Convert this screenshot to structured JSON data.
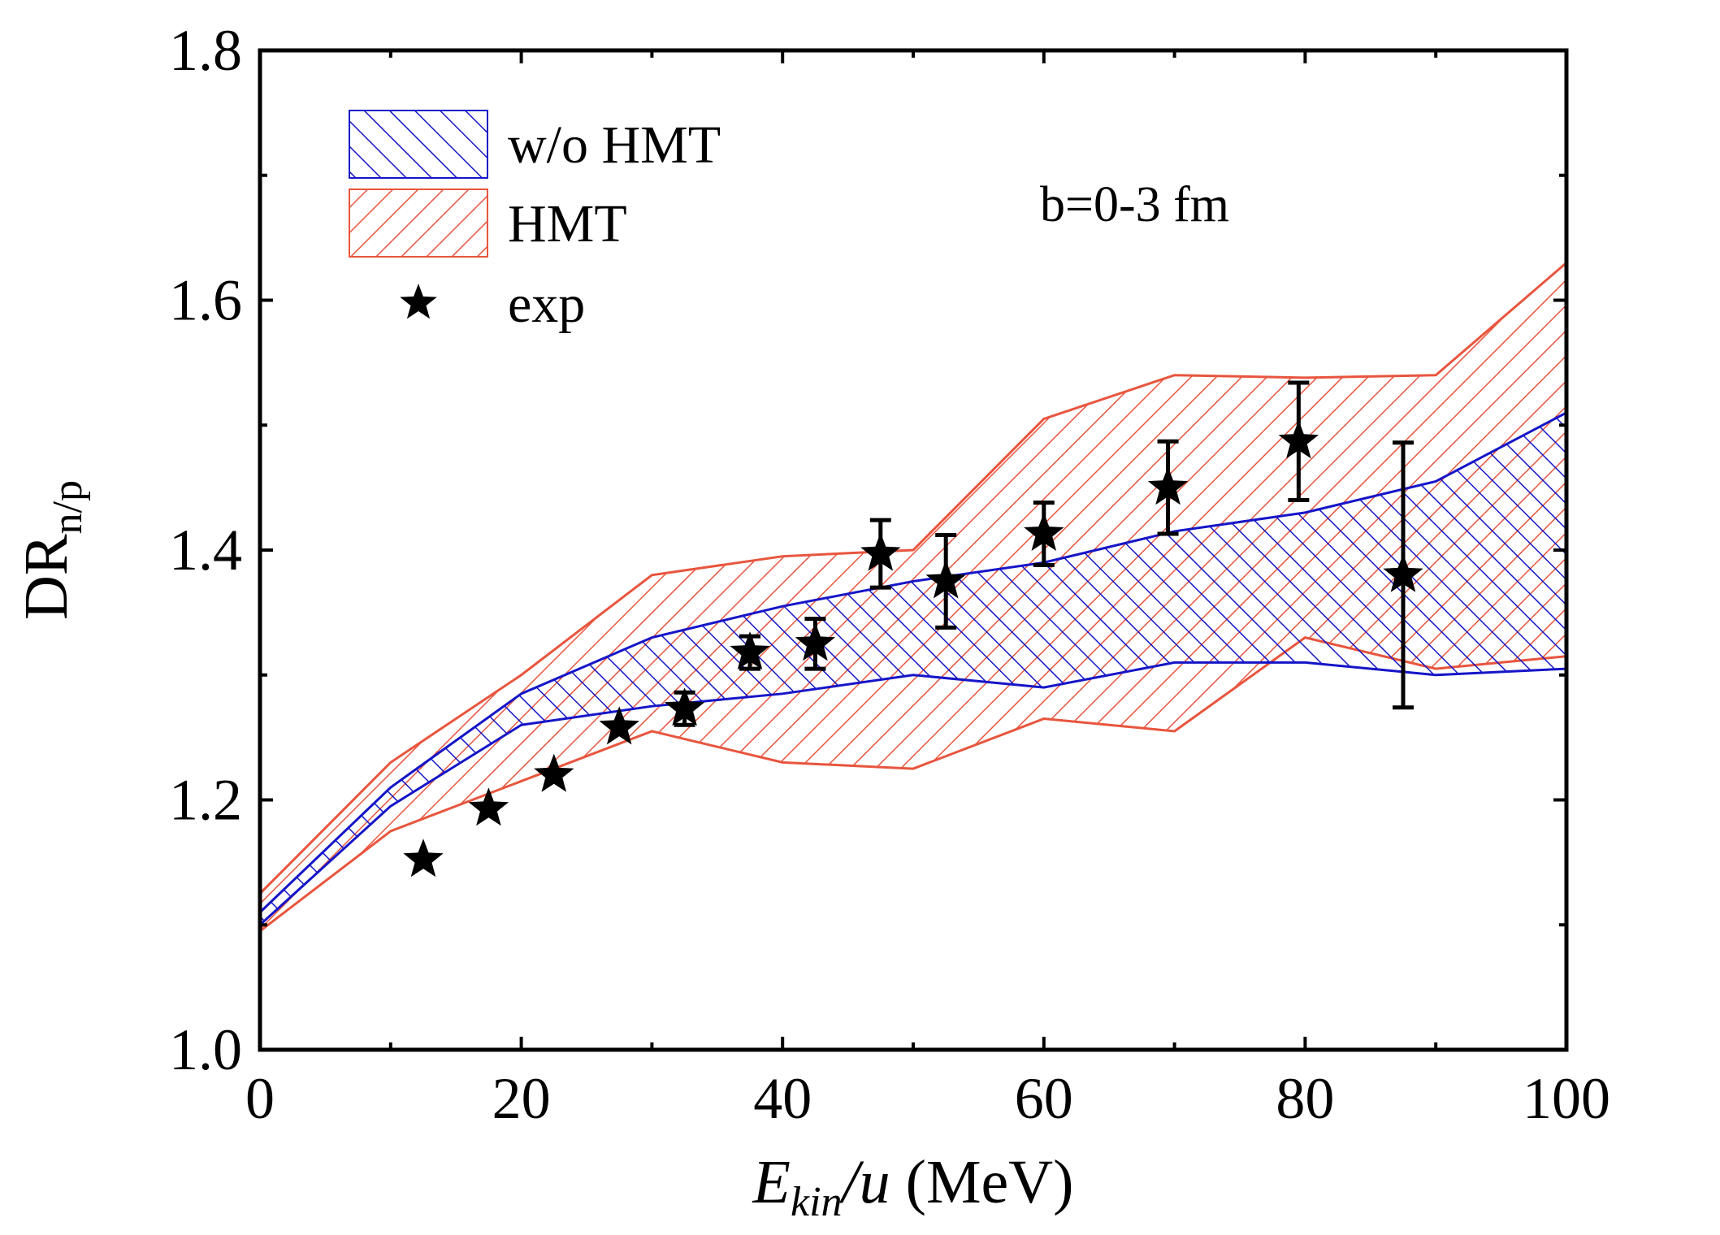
{
  "chart_data": {
    "type": "area",
    "xlabel": {
      "main": "E",
      "sub": "kin",
      "rest": "/u",
      "unit": " (MeV)"
    },
    "ylabel": {
      "main": "DR",
      "sub": "n/p"
    },
    "xlim": [
      0,
      100
    ],
    "ylim": [
      1.0,
      1.8
    ],
    "xticks": [
      0,
      20,
      40,
      60,
      80,
      100
    ],
    "yticks": [
      1.0,
      1.2,
      1.4,
      1.6,
      1.8
    ],
    "xtick_labels": [
      "0",
      "20",
      "40",
      "60",
      "80",
      "100"
    ],
    "ytick_labels": [
      "1.0",
      "1.2",
      "1.4",
      "1.6",
      "1.8"
    ],
    "annotation": "b=0-3 fm",
    "legend_position": "top-left",
    "series": [
      {
        "name": "w/o HMT",
        "kind": "band",
        "color": "#1515c8",
        "hatch": "forward-diagonal",
        "x": [
          0,
          10,
          20,
          30,
          40,
          50,
          60,
          70,
          80,
          90,
          100
        ],
        "upper": [
          1.11,
          1.21,
          1.285,
          1.33,
          1.355,
          1.375,
          1.39,
          1.415,
          1.43,
          1.455,
          1.51
        ],
        "lower": [
          1.1,
          1.195,
          1.26,
          1.275,
          1.285,
          1.3,
          1.29,
          1.31,
          1.31,
          1.3,
          1.305
        ]
      },
      {
        "name": "HMT",
        "kind": "band",
        "color": "#e8553e",
        "hatch": "back-diagonal",
        "x": [
          0,
          10,
          20,
          30,
          40,
          50,
          60,
          70,
          80,
          90,
          100
        ],
        "upper": [
          1.125,
          1.23,
          1.3,
          1.38,
          1.395,
          1.4,
          1.505,
          1.54,
          1.538,
          1.54,
          1.63
        ],
        "lower": [
          1.095,
          1.175,
          1.215,
          1.255,
          1.23,
          1.225,
          1.265,
          1.255,
          1.33,
          1.305,
          1.315
        ]
      },
      {
        "name": "exp",
        "kind": "points",
        "color": "#000000",
        "marker": "star",
        "points": [
          {
            "x": 12.5,
            "y": 1.152,
            "err": 0.0
          },
          {
            "x": 17.5,
            "y": 1.193,
            "err": 0.0
          },
          {
            "x": 22.5,
            "y": 1.22,
            "err": 0.0
          },
          {
            "x": 27.5,
            "y": 1.258,
            "err": 0.0
          },
          {
            "x": 32.5,
            "y": 1.273,
            "err": 0.013
          },
          {
            "x": 37.5,
            "y": 1.318,
            "err": 0.013
          },
          {
            "x": 42.5,
            "y": 1.325,
            "err": 0.02
          },
          {
            "x": 47.5,
            "y": 1.397,
            "err": 0.027
          },
          {
            "x": 52.5,
            "y": 1.375,
            "err": 0.037
          },
          {
            "x": 60.0,
            "y": 1.413,
            "err": 0.025
          },
          {
            "x": 69.5,
            "y": 1.45,
            "err": 0.037
          },
          {
            "x": 79.5,
            "y": 1.487,
            "err": 0.047
          },
          {
            "x": 87.5,
            "y": 1.38,
            "err": 0.106
          }
        ]
      }
    ]
  }
}
